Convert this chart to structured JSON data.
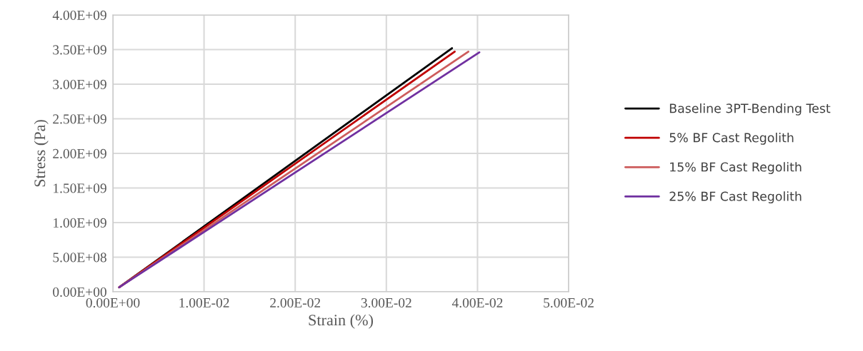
{
  "chart_data": {
    "type": "line",
    "xlabel": "Strain (%)",
    "ylabel": "Stress (Pa)",
    "xlim": [
      0,
      0.05
    ],
    "ylim": [
      0,
      4000000000
    ],
    "xticks": [
      {
        "value": 0,
        "label": "0.00E+00"
      },
      {
        "value": 0.01,
        "label": "1.00E-02"
      },
      {
        "value": 0.02,
        "label": "2.00E-02"
      },
      {
        "value": 0.03,
        "label": "3.00E-02"
      },
      {
        "value": 0.04,
        "label": "4.00E-02"
      },
      {
        "value": 0.05,
        "label": "5.00E-02"
      }
    ],
    "yticks": [
      {
        "value": 0,
        "label": "0.00E+00"
      },
      {
        "value": 500000000,
        "label": "5.00E+08"
      },
      {
        "value": 1000000000,
        "label": "1.00E+09"
      },
      {
        "value": 1500000000,
        "label": "1.50E+09"
      },
      {
        "value": 2000000000,
        "label": "2.00E+09"
      },
      {
        "value": 2500000000,
        "label": "2.50E+09"
      },
      {
        "value": 3000000000,
        "label": "3.00E+09"
      },
      {
        "value": 3500000000,
        "label": "3.50E+09"
      },
      {
        "value": 4000000000,
        "label": "4.00E+09"
      }
    ],
    "grid": true,
    "legend": "right",
    "marker": "none",
    "line_style": "solid",
    "series": [
      {
        "name": "Baseline 3PT-Bending Test",
        "color": "#000000",
        "x": [
          0.0007,
          0.0372
        ],
        "values": [
          65000000,
          3520000000
        ]
      },
      {
        "name": "5% BF Cast Regolith",
        "color": "#c00000",
        "x": [
          0.0007,
          0.0375
        ],
        "values": [
          65000000,
          3470000000
        ]
      },
      {
        "name": "15% BF Cast Regolith",
        "color": "#cd5c5c",
        "x": [
          0.0007,
          0.039
        ],
        "values": [
          65000000,
          3470000000
        ]
      },
      {
        "name": "25% BF Cast Regolith",
        "color": "#7030a0",
        "x": [
          0.0007,
          0.0402
        ],
        "values": [
          65000000,
          3460000000
        ]
      }
    ]
  }
}
